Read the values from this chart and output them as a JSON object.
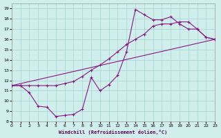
{
  "xlabel": "Windchill (Refroidissement éolien,°C)",
  "bg_color": "#d0eeec",
  "line_color": "#881488",
  "grid_color": "#aad8d4",
  "xlim": [
    0,
    23
  ],
  "ylim": [
    8,
    19.5
  ],
  "xticks": [
    0,
    1,
    2,
    3,
    4,
    5,
    6,
    7,
    8,
    9,
    10,
    11,
    12,
    13,
    14,
    15,
    16,
    17,
    18,
    19,
    20,
    21,
    22,
    23
  ],
  "yticks": [
    8,
    9,
    10,
    11,
    12,
    13,
    14,
    15,
    16,
    17,
    18,
    19
  ],
  "line1_x": [
    0,
    1,
    2,
    3,
    4,
    5,
    6,
    7,
    8,
    9,
    10,
    11,
    12,
    13,
    14,
    15,
    16,
    17,
    18,
    19,
    20,
    21,
    22,
    23
  ],
  "line1_y": [
    11.5,
    11.5,
    10.8,
    9.5,
    9.4,
    8.5,
    8.6,
    8.7,
    9.2,
    12.3,
    11.0,
    11.6,
    12.5,
    14.8,
    18.9,
    18.4,
    17.9,
    17.9,
    18.2,
    17.5,
    17.0,
    17.0,
    16.2,
    16.0
  ],
  "line2_x": [
    0,
    1,
    2,
    3,
    4,
    5,
    6,
    7,
    8,
    9,
    10,
    11,
    12,
    13,
    14,
    15,
    16,
    17,
    18,
    19,
    20,
    21,
    22,
    23
  ],
  "line2_y": [
    11.5,
    11.5,
    11.5,
    11.5,
    11.5,
    11.5,
    11.7,
    11.9,
    12.4,
    13.0,
    13.5,
    14.1,
    14.8,
    15.5,
    16.0,
    16.5,
    17.3,
    17.5,
    17.5,
    17.7,
    17.7,
    17.0,
    16.2,
    16.0
  ],
  "line3_x": [
    0,
    23
  ],
  "line3_y": [
    11.5,
    16.0
  ]
}
